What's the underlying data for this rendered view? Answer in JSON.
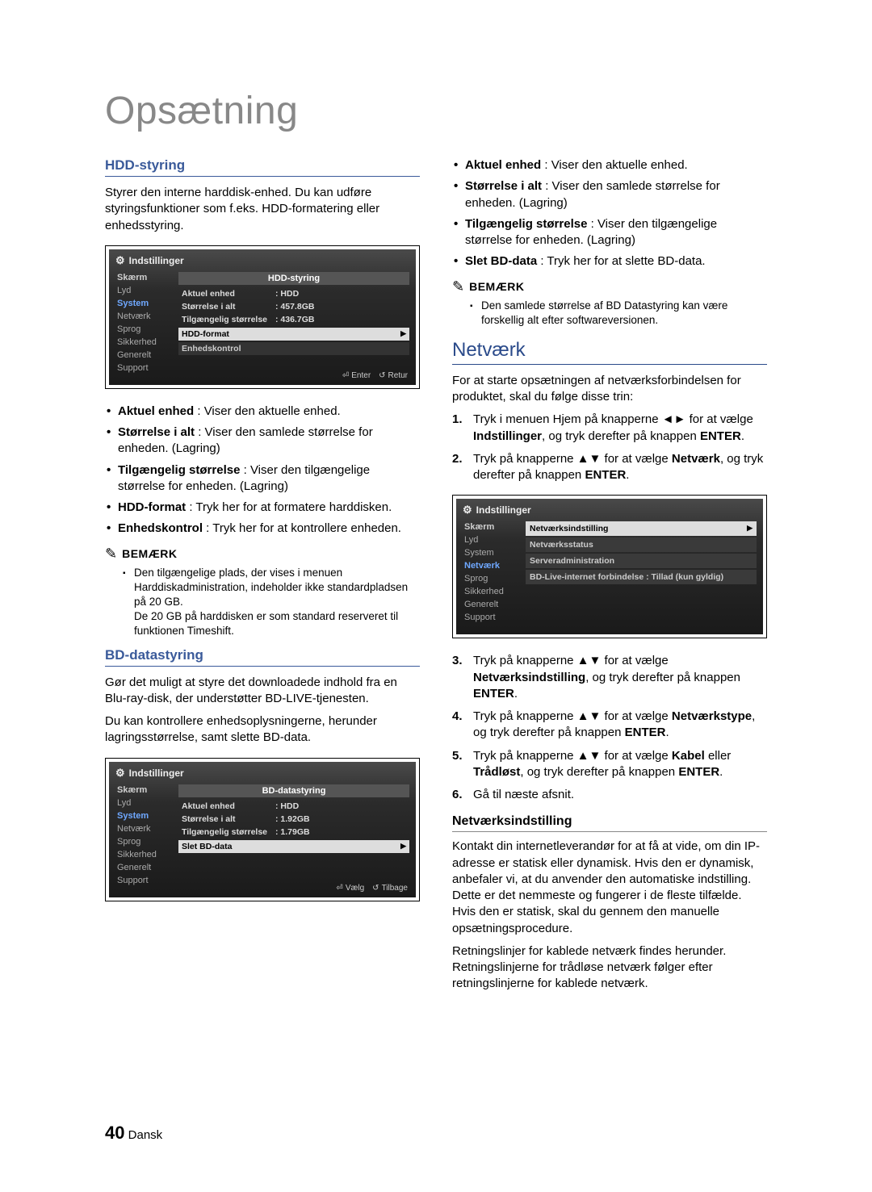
{
  "page": {
    "title": "Opsætning",
    "number": "40",
    "lang": "Dansk"
  },
  "left": {
    "hdd": {
      "heading": "HDD-styring",
      "intro": "Styrer den interne harddisk-enhed. Du kan udføre styringsfunktioner som f.eks. HDD-formatering eller enhedsstyring.",
      "bullets": [
        {
          "term": "Aktuel enhed",
          "text": " : Viser den aktuelle enhed."
        },
        {
          "term": "Størrelse i alt",
          "text": " : Viser den samlede størrelse for enheden. (Lagring)"
        },
        {
          "term": "Tilgængelig størrelse",
          "text": " : Viser den tilgængelige størrelse for enheden. (Lagring)"
        },
        {
          "term": "HDD-format",
          "text": " : Tryk her for at formatere harddisken."
        },
        {
          "term": "Enhedskontrol",
          "text": " : Tryk her for at kontrollere enheden."
        }
      ],
      "note_label": "BEMÆRK",
      "note": "Den tilgængelige plads, der vises i menuen Harddiskadministration, indeholder ikke standardpladsen på 20 GB.\nDe 20 GB på harddisken er som standard reserveret til funktionen Timeshift."
    },
    "bd": {
      "heading": "BD-datastyring",
      "p1": "Gør det muligt at styre det downloadede indhold fra en Blu-ray-disk, der understøtter BD-LIVE-tjenesten.",
      "p2": "Du kan kontrollere enhedsoplysningerne, herunder lagringsstørrelse, samt slette BD-data."
    }
  },
  "right": {
    "top_bullets": [
      {
        "term": "Aktuel enhed",
        "text": " : Viser den aktuelle enhed."
      },
      {
        "term": "Størrelse i alt",
        "text": " : Viser den samlede størrelse for enheden. (Lagring)"
      },
      {
        "term": "Tilgængelig størrelse",
        "text": " : Viser den tilgængelige størrelse for enheden. (Lagring)"
      },
      {
        "term": "Slet BD-data",
        "text": " : Tryk her for at slette BD-data."
      }
    ],
    "note_label": "BEMÆRK",
    "note_top": "Den samlede størrelse af BD Datastyring kan være forskellig alt efter softwareversionen.",
    "network": {
      "heading": "Netværk",
      "intro": "For at starte opsætningen af netværksforbindelsen for produktet, skal du følge disse trin:",
      "steps_a": [
        "Tryk i menuen Hjem på knapperne ◄► for at vælge <b>Indstillinger</b>, og tryk derefter på knappen <b>ENTER</b>.",
        "Tryk på knapperne ▲▼ for at vælge <b>Netværk</b>, og tryk derefter på knappen <b>ENTER</b>."
      ],
      "steps_b": [
        "Tryk på knapperne ▲▼ for at vælge <b>Netværksindstilling</b>, og tryk derefter på knappen <b>ENTER</b>.",
        "Tryk på knapperne ▲▼ for at vælge <b>Netværkstype</b>, og tryk derefter på knappen <b>ENTER</b>.",
        "Tryk på knapperne ▲▼ for at vælge <b>Kabel</b> eller <b>Trådløst</b>, og tryk derefter på knappen <b>ENTER</b>.",
        "Gå til næste afsnit."
      ],
      "sub_heading": "Netværksindstilling",
      "sub_p1": "Kontakt din internetleverandør for at få at vide, om din IP-adresse er statisk eller dynamisk. Hvis den er dynamisk, anbefaler vi, at du anvender den automatiske indstilling. Dette er det nemmeste og fungerer i de fleste tilfælde. Hvis den er statisk, skal du gennem den manuelle opsætningsprocedure.",
      "sub_p2": "Retningslinjer for kablede netværk findes herunder. Retningslinjerne for trådløse netværk følger efter retningslinjerne for kablede netværk."
    }
  },
  "panel_common": {
    "title": "Indstillinger",
    "nav": [
      "Skærm",
      "Lyd",
      "System",
      "Netværk",
      "Sprog",
      "Sikkerhed",
      "Generelt",
      "Support"
    ]
  },
  "panel1": {
    "heading": "HDD-styring",
    "rows": [
      {
        "k": "Aktuel enhed",
        "v": ": HDD"
      },
      {
        "k": "Størrelse i alt",
        "v": ": 457.8GB"
      },
      {
        "k": "Tilgængelig størrelse",
        "v": ": 436.7GB"
      }
    ],
    "btn": "HDD-format",
    "dark": "Enhedskontrol",
    "footer": {
      "a_icon": "⏎",
      "a": "Enter",
      "b_icon": "↺",
      "b": "Retur"
    },
    "active_nav": "System"
  },
  "panel2": {
    "heading": "BD-datastyring",
    "rows": [
      {
        "k": "Aktuel enhed",
        "v": ": HDD"
      },
      {
        "k": "Størrelse i alt",
        "v": ": 1.92GB"
      },
      {
        "k": "Tilgængelig størrelse",
        "v": ": 1.79GB"
      }
    ],
    "btn": "Slet BD-data",
    "footer": {
      "a_icon": "⏎",
      "a": "Vælg",
      "b_icon": "↺",
      "b": "Tilbage"
    },
    "active_nav": "System"
  },
  "panel3": {
    "items": [
      "Netværksindstilling",
      "Netværksstatus",
      "Serveradministration",
      "BD-Live-internet forbindelse : Tillad (kun gyldig)"
    ],
    "active_nav": "Netværk"
  }
}
